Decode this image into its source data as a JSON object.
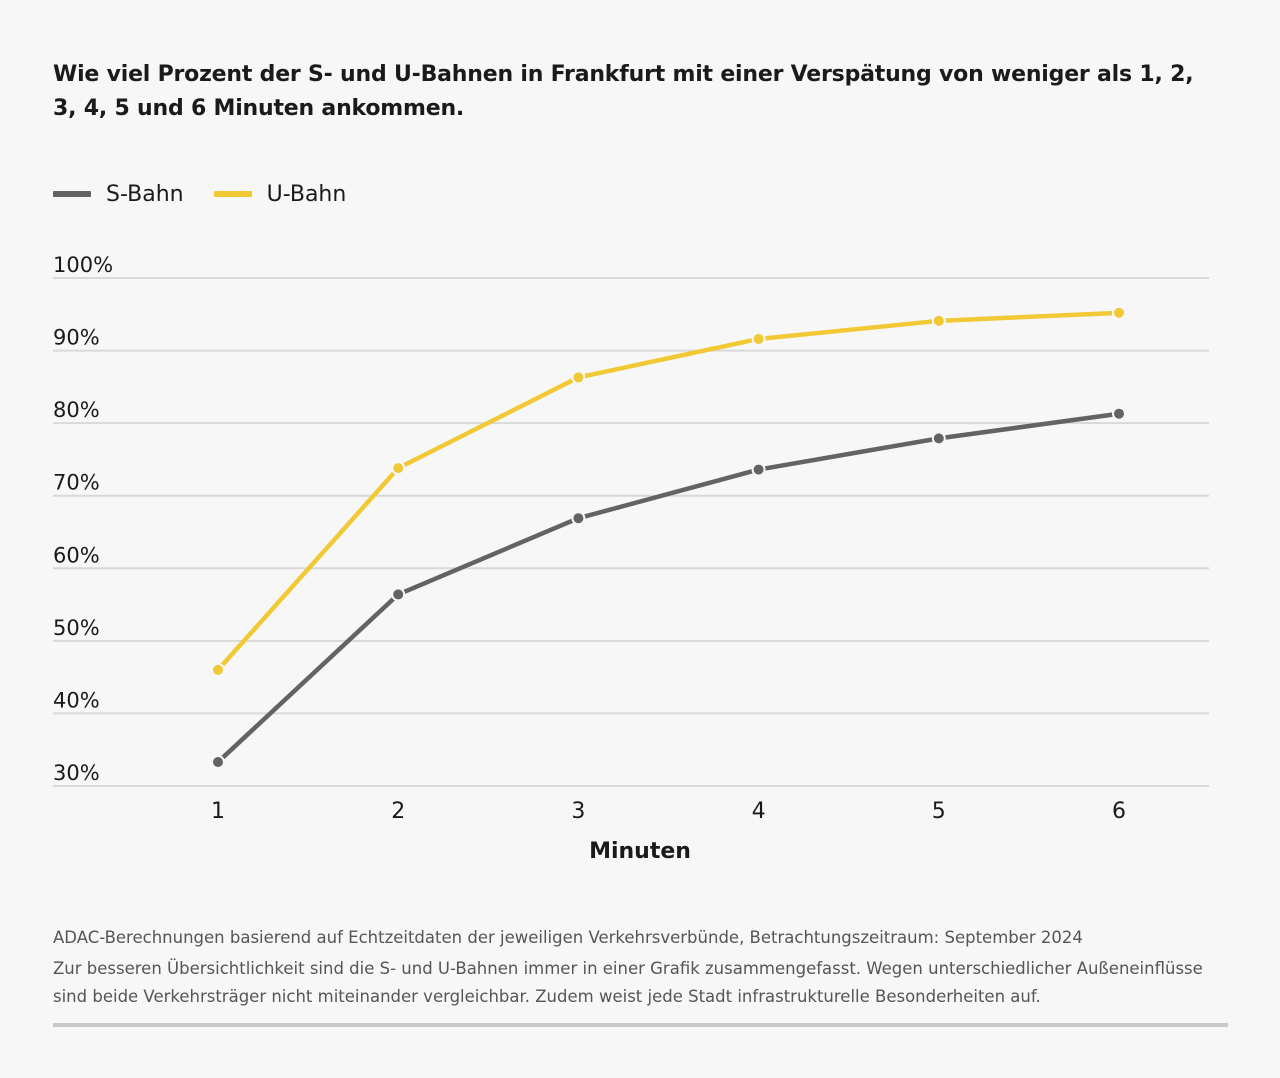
{
  "title": "Wie viel Prozent der S- und U-Bahnen in Frankfurt mit einer Verspätung von weniger als 1, 2, 3, 4, 5 und 6 Minuten ankommen.",
  "colors": {
    "s_bahn": "#636363",
    "u_bahn": "#f1c935",
    "grid": "#d9d9d9",
    "text": "#1a1a1a"
  },
  "footer": {
    "source": "ADAC-Berechnungen basierend auf Echtzeitdaten der jeweiligen Verkehrsverbünde, Betrachtungszeitraum: September 2024",
    "note": "Zur besseren Übersichtlichkeit sind die S- und U-Bahnen immer in einer Grafik zusammengefasst. Wegen unterschiedlicher Außeneinflüsse sind beide Verkehrsträger nicht miteinander vergleichbar. Zudem weist jede Stadt infrastrukturelle Besonderheiten auf."
  },
  "chart_data": {
    "type": "line",
    "x": [
      1,
      2,
      3,
      4,
      5,
      6
    ],
    "xlabel": "Minuten",
    "ylabel": "",
    "ylim": [
      30,
      100
    ],
    "yticks": [
      "30%",
      "40%",
      "50%",
      "60%",
      "70%",
      "80%",
      "90%",
      "100%"
    ],
    "ytick_values": [
      30,
      40,
      50,
      60,
      70,
      80,
      90,
      100
    ],
    "grid": true,
    "legend": "top-left",
    "series": [
      {
        "name": "S-Bahn",
        "color": "#636363",
        "values": [
          33.3,
          56.4,
          66.9,
          73.6,
          77.9,
          81.3
        ]
      },
      {
        "name": "U-Bahn",
        "color": "#f1c935",
        "values": [
          46.0,
          73.8,
          86.3,
          91.6,
          94.1,
          95.2
        ]
      }
    ]
  }
}
